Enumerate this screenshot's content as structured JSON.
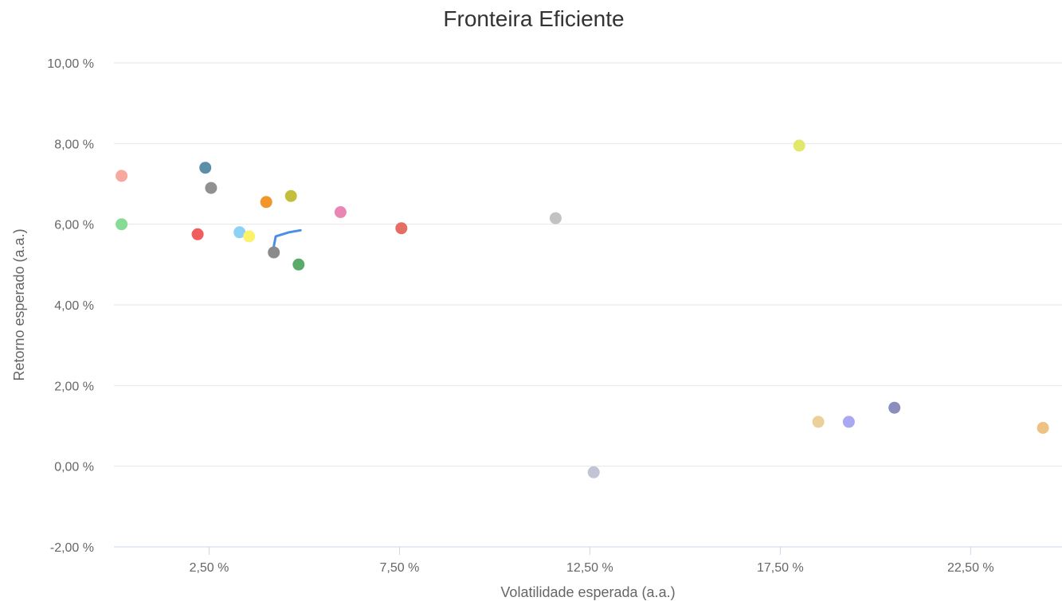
{
  "chart_data": {
    "type": "scatter",
    "title": "Fronteira Eficiente",
    "xlabel": "Volatilidade esperada (a.a.)",
    "ylabel": "Retorno esperado (a.a.)",
    "xlim": [
      0.0,
      24.9
    ],
    "ylim": [
      -2.0,
      10.0
    ],
    "x_ticks": [
      2.5,
      7.5,
      12.5,
      17.5,
      22.5
    ],
    "x_tick_labels": [
      "2,50 %",
      "7,50 %",
      "12,50 %",
      "17,50 %",
      "22,50 %"
    ],
    "y_ticks": [
      -2.0,
      0.0,
      2.0,
      4.0,
      6.0,
      8.0,
      10.0
    ],
    "y_tick_labels": [
      "-2,00 %",
      "0,00 %",
      "2,00 %",
      "4,00 %",
      "6,00 %",
      "8,00 %",
      "10,00 %"
    ],
    "grid": true,
    "legend": false,
    "frontier": {
      "color": "#4a8fe7",
      "points": [
        [
          4.2,
          5.45
        ],
        [
          4.25,
          5.7
        ],
        [
          4.6,
          5.8
        ],
        [
          4.9,
          5.85
        ]
      ]
    },
    "points": [
      {
        "x": 0.2,
        "y": 7.2,
        "color": "#f7a9a0"
      },
      {
        "x": 0.2,
        "y": 6.0,
        "color": "#86dc94"
      },
      {
        "x": 2.2,
        "y": 5.75,
        "color": "#f15c5c"
      },
      {
        "x": 2.4,
        "y": 7.4,
        "color": "#5b8fa8"
      },
      {
        "x": 2.55,
        "y": 6.9,
        "color": "#919191"
      },
      {
        "x": 3.3,
        "y": 5.8,
        "color": "#8ed1f7"
      },
      {
        "x": 3.55,
        "y": 5.7,
        "color": "#fbf36a"
      },
      {
        "x": 4.0,
        "y": 6.55,
        "color": "#f0962a"
      },
      {
        "x": 4.2,
        "y": 5.3,
        "color": "#8a8a8a"
      },
      {
        "x": 4.65,
        "y": 6.7,
        "color": "#c3bf3d"
      },
      {
        "x": 4.85,
        "y": 5.0,
        "color": "#5aab6a"
      },
      {
        "x": 5.95,
        "y": 6.3,
        "color": "#ea86b4"
      },
      {
        "x": 7.55,
        "y": 5.9,
        "color": "#e46e62"
      },
      {
        "x": 11.6,
        "y": 6.15,
        "color": "#c2c2c2"
      },
      {
        "x": 12.6,
        "y": -0.15,
        "color": "#c1c4d2"
      },
      {
        "x": 18.0,
        "y": 7.95,
        "color": "#e1e86a"
      },
      {
        "x": 18.5,
        "y": 1.1,
        "color": "#ebd09b"
      },
      {
        "x": 19.3,
        "y": 1.1,
        "color": "#aaa8f1"
      },
      {
        "x": 20.5,
        "y": 1.45,
        "color": "#8b8dbd"
      },
      {
        "x": 24.4,
        "y": 0.95,
        "color": "#edc283"
      }
    ]
  }
}
